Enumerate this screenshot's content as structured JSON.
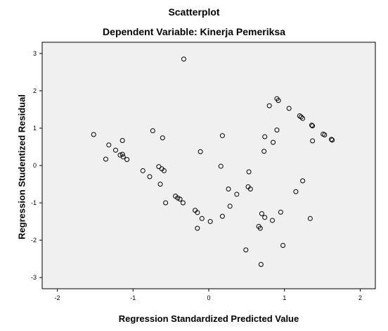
{
  "chart_data": {
    "type": "scatter",
    "title": "Scatterplot",
    "subtitle": "Dependent Variable: Kinerja Pemeriksa",
    "xlabel": "Regression Standardized Predicted Value",
    "ylabel": "Regression Studentized Residual",
    "xlim": [
      -2.2,
      2.2
    ],
    "ylim": [
      -3.3,
      3.3
    ],
    "x_ticks": [
      -2,
      -1,
      0,
      1,
      2
    ],
    "y_ticks": [
      3,
      2,
      1,
      0,
      -1,
      -2,
      -3
    ],
    "x_tick_labels": [
      "-2",
      "-1",
      "0",
      "1",
      "2"
    ],
    "y_tick_labels": [
      "3",
      "2",
      "1",
      "0",
      "-1",
      "-2",
      "-3"
    ],
    "grid": false,
    "plot_background": "#f0f0f0",
    "marker_color": "#000000",
    "points": [
      {
        "x": -1.52,
        "y": 0.83
      },
      {
        "x": -1.32,
        "y": 0.55
      },
      {
        "x": -1.36,
        "y": 0.17
      },
      {
        "x": -1.23,
        "y": 0.41
      },
      {
        "x": -1.17,
        "y": 0.28
      },
      {
        "x": -1.14,
        "y": 0.3
      },
      {
        "x": -1.13,
        "y": 0.23
      },
      {
        "x": -1.14,
        "y": 0.67
      },
      {
        "x": -1.08,
        "y": 0.16
      },
      {
        "x": -0.74,
        "y": 0.93
      },
      {
        "x": -0.61,
        "y": 0.74
      },
      {
        "x": -0.87,
        "y": -0.14
      },
      {
        "x": -0.78,
        "y": -0.3
      },
      {
        "x": -0.66,
        "y": -0.03
      },
      {
        "x": -0.62,
        "y": -0.09
      },
      {
        "x": -0.59,
        "y": -0.14
      },
      {
        "x": -0.64,
        "y": -0.5
      },
      {
        "x": -0.57,
        "y": -1.0
      },
      {
        "x": -0.44,
        "y": -0.82
      },
      {
        "x": -0.41,
        "y": -0.87
      },
      {
        "x": -0.38,
        "y": -0.9
      },
      {
        "x": -0.34,
        "y": -1.0
      },
      {
        "x": -0.33,
        "y": 2.85
      },
      {
        "x": -0.18,
        "y": -1.2
      },
      {
        "x": -0.15,
        "y": -1.26
      },
      {
        "x": -0.15,
        "y": -1.68
      },
      {
        "x": -0.09,
        "y": -1.42
      },
      {
        "x": -0.11,
        "y": 0.37
      },
      {
        "x": 0.02,
        "y": -1.5
      },
      {
        "x": 0.16,
        "y": -0.02
      },
      {
        "x": 0.18,
        "y": 0.8
      },
      {
        "x": 0.18,
        "y": -1.36
      },
      {
        "x": 0.26,
        "y": -0.63
      },
      {
        "x": 0.28,
        "y": -1.09
      },
      {
        "x": 0.37,
        "y": -0.77
      },
      {
        "x": 0.49,
        "y": -2.26
      },
      {
        "x": 0.52,
        "y": -0.57
      },
      {
        "x": 0.53,
        "y": -0.17
      },
      {
        "x": 0.55,
        "y": -0.63
      },
      {
        "x": 0.66,
        "y": -1.63
      },
      {
        "x": 0.68,
        "y": -1.68
      },
      {
        "x": 0.7,
        "y": -1.29
      },
      {
        "x": 0.69,
        "y": -2.65
      },
      {
        "x": 0.73,
        "y": 0.38
      },
      {
        "x": 0.74,
        "y": 0.77
      },
      {
        "x": 0.74,
        "y": -1.39
      },
      {
        "x": 0.8,
        "y": 1.6
      },
      {
        "x": 0.84,
        "y": -1.47
      },
      {
        "x": 0.85,
        "y": 0.62
      },
      {
        "x": 0.9,
        "y": 0.95
      },
      {
        "x": 0.9,
        "y": 1.79
      },
      {
        "x": 0.92,
        "y": 1.74
      },
      {
        "x": 0.95,
        "y": -1.25
      },
      {
        "x": 0.98,
        "y": -2.14
      },
      {
        "x": 1.06,
        "y": 1.53
      },
      {
        "x": 1.15,
        "y": -0.7
      },
      {
        "x": 1.2,
        "y": 1.33
      },
      {
        "x": 1.22,
        "y": 1.3
      },
      {
        "x": 1.24,
        "y": -0.41
      },
      {
        "x": 1.24,
        "y": 1.26
      },
      {
        "x": 1.34,
        "y": -1.42
      },
      {
        "x": 1.36,
        "y": 1.08
      },
      {
        "x": 1.37,
        "y": 1.06
      },
      {
        "x": 1.37,
        "y": 0.66
      },
      {
        "x": 1.51,
        "y": 0.84
      },
      {
        "x": 1.53,
        "y": 0.82
      },
      {
        "x": 1.62,
        "y": 0.7
      },
      {
        "x": 1.63,
        "y": 0.68
      }
    ]
  }
}
